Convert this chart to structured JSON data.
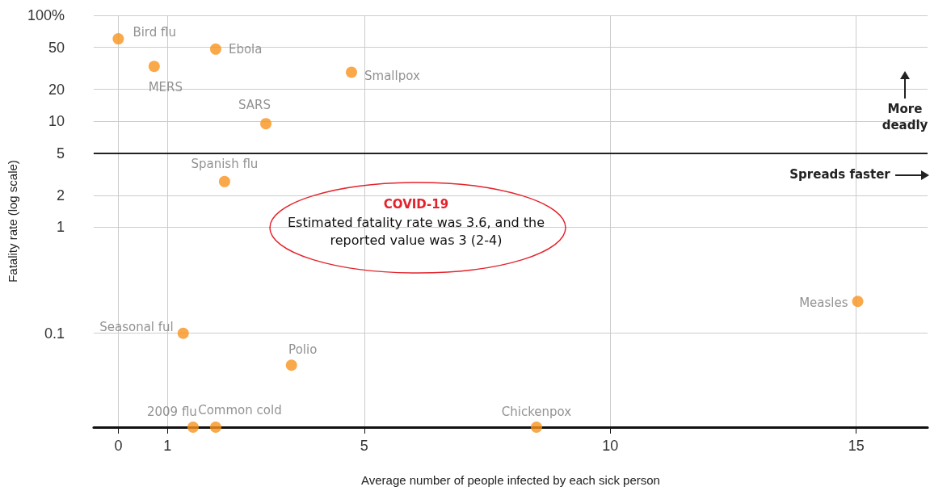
{
  "chart_data": {
    "type": "scatter",
    "xlabel": "Average number of people infected by each sick person",
    "ylabel": "Fatality rate (log scale)",
    "series": [
      {
        "name": "Bird flu",
        "color": "#f7941d",
        "x": [
          0
        ],
        "values": [
          60
        ]
      },
      {
        "name": "MERS",
        "color": "#f7941d",
        "x": [
          0.73
        ],
        "values": [
          33
        ]
      },
      {
        "name": "Ebola",
        "color": "#f7941d",
        "x": [
          1.98
        ],
        "values": [
          48
        ]
      },
      {
        "name": "Smallpox",
        "color": "#f7941d",
        "x": [
          4.74
        ],
        "values": [
          29
        ]
      },
      {
        "name": "SARS",
        "color": "#f7941d",
        "x": [
          3.0
        ],
        "values": [
          9.5
        ]
      },
      {
        "name": "Spanish flu",
        "color": "#f7941d",
        "x": [
          2.16
        ],
        "values": [
          2.7
        ]
      },
      {
        "name": "Seasonal ful",
        "color": "#f7941d",
        "x": [
          1.32
        ],
        "values": [
          0.1
        ]
      },
      {
        "name": "Polio",
        "color": "#f7941d",
        "x": [
          3.52
        ],
        "values": [
          0.05
        ]
      },
      {
        "name": "2009 flu",
        "color": "#f7941d",
        "x": [
          1.52
        ],
        "values": [
          0.013
        ]
      },
      {
        "name": "Common cold",
        "color": "#f7941d",
        "x": [
          1.98
        ],
        "values": [
          0.013
        ]
      },
      {
        "name": "Chickenpox",
        "color": "#f7941d",
        "x": [
          8.5
        ],
        "values": [
          0.013
        ]
      },
      {
        "name": "Measles",
        "color": "#f7941d",
        "x": [
          15.03
        ],
        "values": [
          0.2
        ]
      }
    ],
    "xlim": [
      -0.5,
      16.45
    ],
    "xticks": [
      0,
      1,
      5,
      10,
      15
    ],
    "ylim": [
      0.013,
      100
    ],
    "yticks": [
      {
        "value": 100,
        "label": "100%"
      },
      50,
      20,
      10,
      5,
      2,
      1,
      0.1
    ],
    "log": "y",
    "grid": true,
    "legend": false,
    "marker": "circle",
    "ref_lines": [
      {
        "axis": "y",
        "value": 5,
        "label": null,
        "color": "#222222"
      }
    ],
    "annotations": [
      "More deadly",
      "Spreads faster",
      "COVID-19",
      "Estimated fatality rate was 3.6, and the reported value was 3 (2-4)"
    ]
  }
}
